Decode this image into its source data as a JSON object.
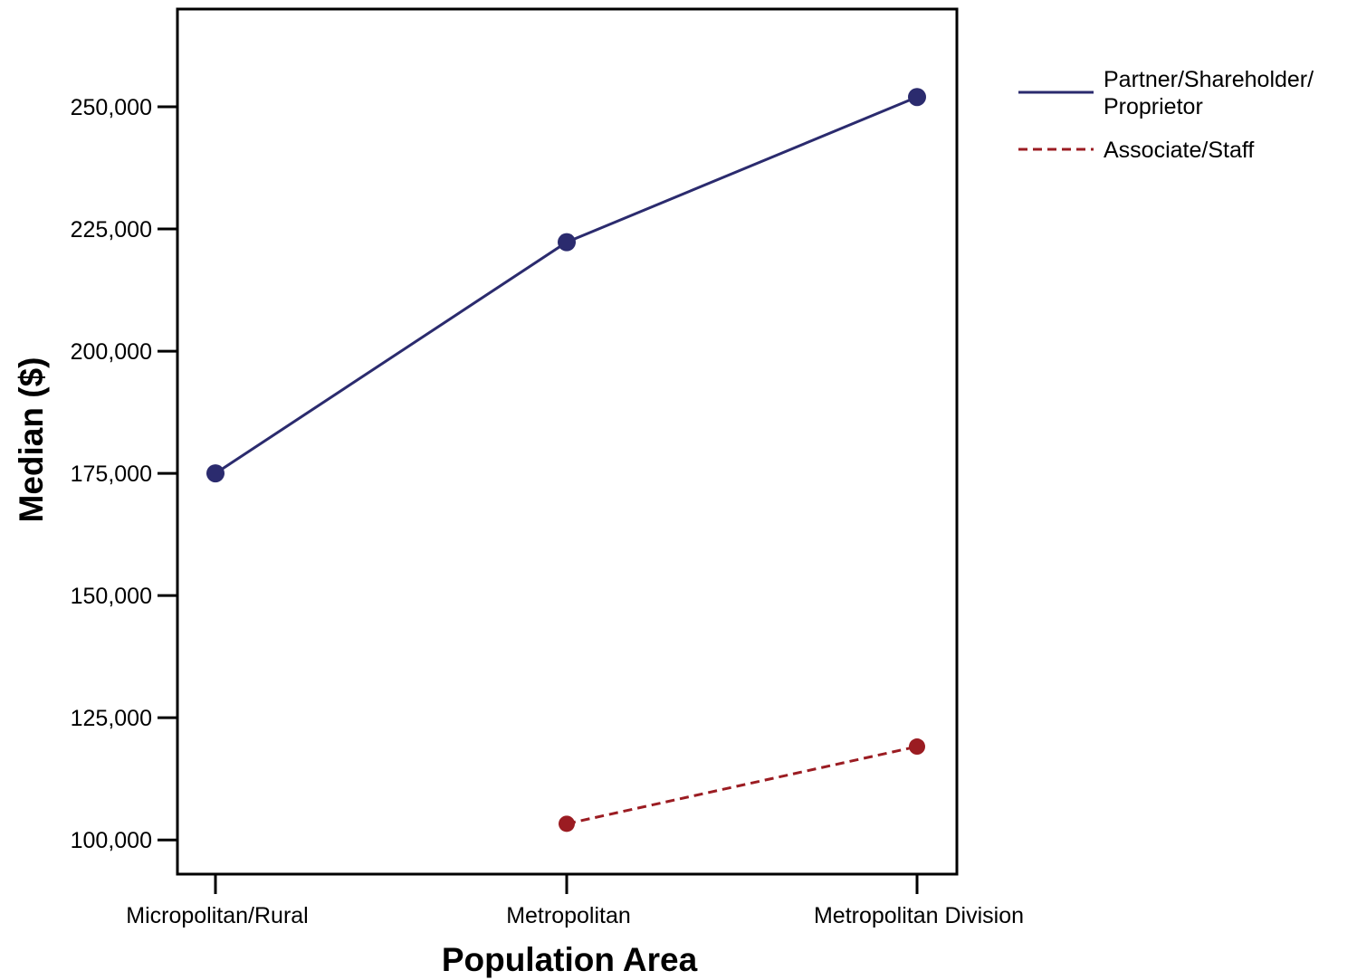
{
  "chart_data": {
    "type": "line",
    "xlabel": "Population Area",
    "ylabel": "Median ($)",
    "categories": [
      "Micropolitan/Rural",
      "Metropolitan",
      "Metropolitan Division"
    ],
    "ylim": [
      93000,
      270000
    ],
    "yticks": [
      100000,
      125000,
      150000,
      175000,
      200000,
      225000,
      250000
    ],
    "ytick_labels": [
      "100,000",
      "125,000",
      "150,000",
      "175,000",
      "200,000",
      "225,000",
      "250,000"
    ],
    "grid": false,
    "legend_position": "right",
    "series": [
      {
        "name_lines": [
          "Partner/Shareholder/",
          "Proprietor"
        ],
        "color": "#2b2b6e",
        "line_style": "solid",
        "values": [
          175000,
          222300,
          252000
        ]
      },
      {
        "name_lines": [
          "Associate/Staff"
        ],
        "color": "#9b1c22",
        "line_style": "dashed",
        "values": [
          null,
          103300,
          119100
        ]
      }
    ]
  }
}
